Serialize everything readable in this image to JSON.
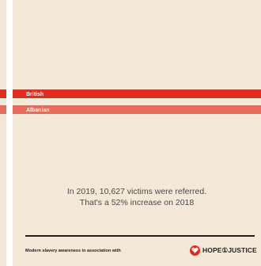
{
  "chart_data": {
    "type": "bar",
    "orientation": "horizontal",
    "categories": [
      "British",
      "Albanian"
    ],
    "colors": [
      "#e32b1e",
      "#eb6b5a"
    ],
    "grid": false,
    "legend": "none"
  },
  "caption": {
    "line1": "In 2019, 10,627 victims were referred.",
    "line2": "That's a 52% increase on 2018"
  },
  "footer": {
    "text": "Modern slavery awareness in association with",
    "logo_text": "HOPE①JUSTICE"
  },
  "colors": {
    "card_bg": "#f4e8d8",
    "accent": "#e32b1e",
    "accent_light": "#eb6b5a",
    "text_dark": "#222222"
  }
}
